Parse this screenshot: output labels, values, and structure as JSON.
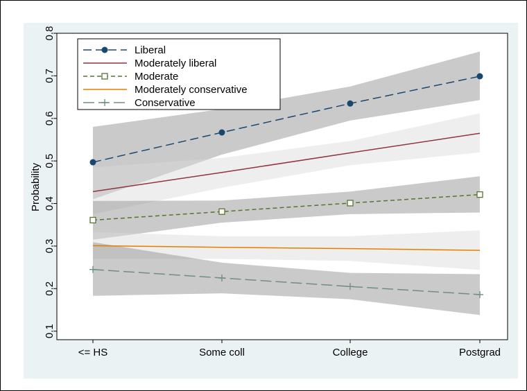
{
  "chart_data": {
    "type": "line",
    "ylabel": "Probability",
    "xlabel": "",
    "categories": [
      "<= HS",
      "Some coll",
      "College",
      "Postgrad"
    ],
    "ylim": [
      0.08,
      0.8
    ],
    "yticks": [
      0.1,
      0.2,
      0.3,
      0.4,
      0.5,
      0.6,
      0.7,
      0.8
    ],
    "ytick_labels": [
      "0.1",
      "0.2",
      "0.3",
      "0.4",
      "0.5",
      "0.6",
      "0.7",
      "0.8"
    ],
    "legend_position": "top-left",
    "series": [
      {
        "name": "Liberal",
        "values": [
          0.497,
          0.567,
          0.635,
          0.699
        ],
        "ci_low": [
          0.41,
          0.515,
          0.595,
          0.643
        ],
        "ci_high": [
          0.58,
          0.622,
          0.675,
          0.757
        ],
        "color": "#1a476f",
        "band_color": "#8a8a8a",
        "marker": "circle",
        "dash": "dash"
      },
      {
        "name": "Moderately liberal",
        "values": [
          0.428,
          0.473,
          0.519,
          0.565
        ],
        "ci_low": [
          0.375,
          0.437,
          0.49,
          0.52
        ],
        "ci_high": [
          0.485,
          0.507,
          0.547,
          0.612
        ],
        "color": "#90353b",
        "band_color": "#d9d9d9",
        "marker": "none",
        "dash": "solid"
      },
      {
        "name": "Moderate",
        "values": [
          0.361,
          0.381,
          0.401,
          0.421
        ],
        "ci_low": [
          0.315,
          0.355,
          0.375,
          0.379
        ],
        "ci_high": [
          0.406,
          0.407,
          0.428,
          0.464
        ],
        "color": "#55752f",
        "band_color": "#8a8a8a",
        "marker": "square-hollow",
        "dash": "shortdash"
      },
      {
        "name": "Moderately conservative",
        "values": [
          0.301,
          0.297,
          0.294,
          0.29
        ],
        "ci_low": [
          0.27,
          0.27,
          0.265,
          0.244
        ],
        "ci_high": [
          0.333,
          0.323,
          0.323,
          0.337
        ],
        "color": "#e37e00",
        "band_color": "#d9d9d9",
        "marker": "none",
        "dash": "solid"
      },
      {
        "name": "Conservative",
        "values": [
          0.245,
          0.225,
          0.205,
          0.186
        ],
        "ci_low": [
          0.183,
          0.189,
          0.175,
          0.138
        ],
        "ci_high": [
          0.309,
          0.261,
          0.237,
          0.234
        ],
        "color": "#6e8e84",
        "band_color": "#8a8a8a",
        "marker": "plus",
        "dash": "longdash"
      }
    ]
  },
  "colors": {
    "outer_background": "#eaf2f3",
    "plot_background": "#ffffff"
  }
}
